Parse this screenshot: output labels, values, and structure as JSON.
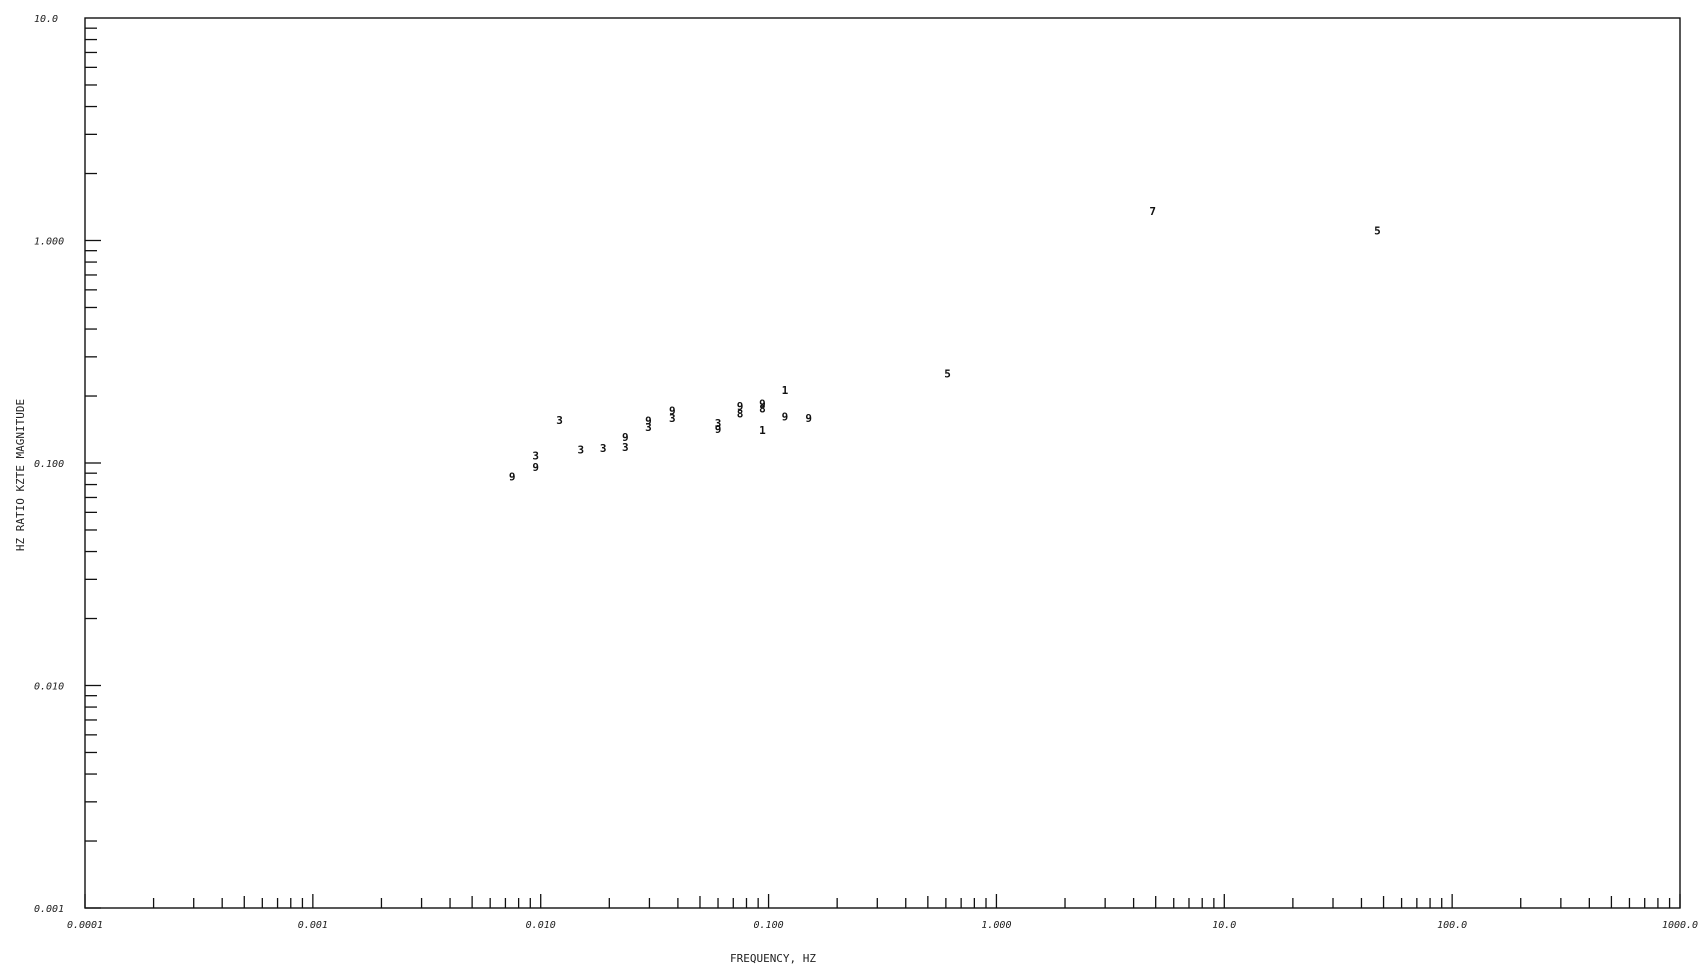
{
  "chart_data": {
    "type": "scatter",
    "title": "",
    "xlabel": "FREQUENCY, HZ",
    "ylabel": "HZ RATIO KZTE MAGNITUDE",
    "xscale": "log",
    "yscale": "log",
    "xlim": [
      0.0001,
      1000.0
    ],
    "ylim": [
      0.001,
      10.0
    ],
    "grid": false,
    "x_tick_labels": [
      {
        "value": 0.0001,
        "label": "0.0001"
      },
      {
        "value": 0.001,
        "label": "0.001"
      },
      {
        "value": 0.01,
        "label": "0.010"
      },
      {
        "value": 0.1,
        "label": "0.100"
      },
      {
        "value": 1.0,
        "label": "1.000"
      },
      {
        "value": 10.0,
        "label": "10.0"
      },
      {
        "value": 100.0,
        "label": "100.0"
      },
      {
        "value": 1000.0,
        "label": "1000.0"
      }
    ],
    "y_tick_labels": [
      {
        "value": 0.001,
        "label": "0.001"
      },
      {
        "value": 0.01,
        "label": "0.010"
      },
      {
        "value": 0.1,
        "label": "0.100"
      },
      {
        "value": 1.0,
        "label": "1.000"
      },
      {
        "value": 10.0,
        "label": "10.0"
      }
    ],
    "points": [
      {
        "x": 0.0075,
        "y": 0.087,
        "label": "9"
      },
      {
        "x": 0.0095,
        "y": 0.108,
        "label": "3"
      },
      {
        "x": 0.0095,
        "y": 0.096,
        "label": "9"
      },
      {
        "x": 0.0121,
        "y": 0.156,
        "label": "3"
      },
      {
        "x": 0.015,
        "y": 0.115,
        "label": "3"
      },
      {
        "x": 0.0188,
        "y": 0.117,
        "label": "3"
      },
      {
        "x": 0.0235,
        "y": 0.131,
        "label": "9"
      },
      {
        "x": 0.0235,
        "y": 0.118,
        "label": "3"
      },
      {
        "x": 0.0297,
        "y": 0.155,
        "label": "9"
      },
      {
        "x": 0.0297,
        "y": 0.145,
        "label": "3"
      },
      {
        "x": 0.0378,
        "y": 0.172,
        "label": "9"
      },
      {
        "x": 0.0378,
        "y": 0.159,
        "label": "3"
      },
      {
        "x": 0.06,
        "y": 0.151,
        "label": "3"
      },
      {
        "x": 0.06,
        "y": 0.142,
        "label": "9"
      },
      {
        "x": 0.075,
        "y": 0.18,
        "label": "9"
      },
      {
        "x": 0.075,
        "y": 0.167,
        "label": "8"
      },
      {
        "x": 0.094,
        "y": 0.185,
        "label": "9"
      },
      {
        "x": 0.094,
        "y": 0.176,
        "label": "8"
      },
      {
        "x": 0.094,
        "y": 0.141,
        "label": "1"
      },
      {
        "x": 0.118,
        "y": 0.213,
        "label": "1"
      },
      {
        "x": 0.118,
        "y": 0.162,
        "label": "9"
      },
      {
        "x": 0.15,
        "y": 0.159,
        "label": "9"
      },
      {
        "x": 0.61,
        "y": 0.252,
        "label": "5"
      },
      {
        "x": 4.85,
        "y": 1.36,
        "label": "7"
      },
      {
        "x": 47.0,
        "y": 1.11,
        "label": "5"
      }
    ]
  }
}
